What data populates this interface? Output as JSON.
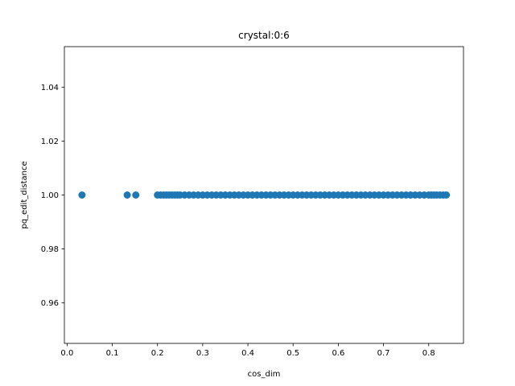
{
  "chart_data": {
    "type": "scatter",
    "title": "crystal:0:6",
    "xlabel": "cos_dim",
    "ylabel": "pq_edit_distance",
    "xlim": [
      -0.006,
      0.877
    ],
    "ylim": [
      0.945,
      1.055
    ],
    "xticks": [
      0.0,
      0.1,
      0.2,
      0.3,
      0.4,
      0.5,
      0.6,
      0.7,
      0.8
    ],
    "xtick_labels": [
      "0.0",
      "0.1",
      "0.2",
      "0.3",
      "0.4",
      "0.5",
      "0.6",
      "0.7",
      "0.8"
    ],
    "yticks": [
      0.96,
      0.98,
      1.0,
      1.02,
      1.04
    ],
    "ytick_labels": [
      "0.96",
      "0.98",
      "1.00",
      "1.02",
      "1.04"
    ],
    "grid": false,
    "color": "#1f77b4",
    "series": [
      {
        "x": [
          0.033,
          0.133,
          0.152,
          0.2,
          0.207,
          0.214,
          0.22,
          0.226,
          0.232,
          0.238,
          0.244,
          0.25,
          0.26,
          0.27,
          0.28,
          0.29,
          0.3,
          0.31,
          0.32,
          0.33,
          0.34,
          0.35,
          0.36,
          0.37,
          0.38,
          0.39,
          0.4,
          0.41,
          0.42,
          0.43,
          0.44,
          0.45,
          0.46,
          0.47,
          0.48,
          0.49,
          0.5,
          0.51,
          0.52,
          0.53,
          0.54,
          0.55,
          0.56,
          0.57,
          0.58,
          0.59,
          0.6,
          0.61,
          0.62,
          0.63,
          0.64,
          0.65,
          0.66,
          0.67,
          0.68,
          0.69,
          0.7,
          0.71,
          0.72,
          0.73,
          0.74,
          0.75,
          0.76,
          0.77,
          0.78,
          0.79,
          0.8,
          0.806,
          0.812,
          0.818,
          0.825,
          0.832,
          0.839
        ],
        "y": [
          1.0,
          1.0,
          1.0,
          1.0,
          1.0,
          1.0,
          1.0,
          1.0,
          1.0,
          1.0,
          1.0,
          1.0,
          1.0,
          1.0,
          1.0,
          1.0,
          1.0,
          1.0,
          1.0,
          1.0,
          1.0,
          1.0,
          1.0,
          1.0,
          1.0,
          1.0,
          1.0,
          1.0,
          1.0,
          1.0,
          1.0,
          1.0,
          1.0,
          1.0,
          1.0,
          1.0,
          1.0,
          1.0,
          1.0,
          1.0,
          1.0,
          1.0,
          1.0,
          1.0,
          1.0,
          1.0,
          1.0,
          1.0,
          1.0,
          1.0,
          1.0,
          1.0,
          1.0,
          1.0,
          1.0,
          1.0,
          1.0,
          1.0,
          1.0,
          1.0,
          1.0,
          1.0,
          1.0,
          1.0,
          1.0,
          1.0,
          1.0,
          1.0,
          1.0,
          1.0,
          1.0,
          1.0,
          1.0
        ]
      }
    ]
  }
}
